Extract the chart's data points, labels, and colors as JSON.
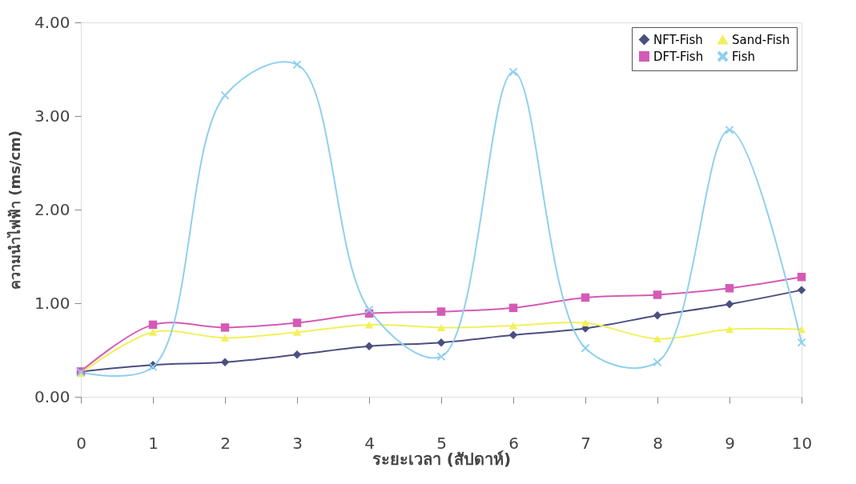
{
  "chart_data": {
    "type": "line",
    "xlabel": "ระยะเวลา (สัปดาห์)",
    "ylabel": "ความนำไฟฟ้า (ms/cm)",
    "x": [
      0,
      1,
      2,
      3,
      4,
      5,
      6,
      7,
      8,
      9,
      10
    ],
    "xlim": [
      0,
      10
    ],
    "xticks": [
      0,
      1,
      2,
      3,
      4,
      5,
      6,
      7,
      8,
      9,
      10
    ],
    "ylim": [
      0,
      4
    ],
    "yticks": [
      {
        "value": 0,
        "label": "0.00"
      },
      {
        "value": 1,
        "label": "1.00"
      },
      {
        "value": 2,
        "label": "2.00"
      },
      {
        "value": 3,
        "label": "3.00"
      },
      {
        "value": 4,
        "label": "4.00"
      }
    ],
    "grid": false,
    "legend": "top right",
    "line_style": "solid",
    "series": [
      {
        "name": "NFT-Fish",
        "color": "#4a4f80",
        "marker": "diamond",
        "values": [
          0.27,
          0.34,
          0.37,
          0.45,
          0.54,
          0.58,
          0.66,
          0.73,
          0.87,
          0.99,
          1.14
        ]
      },
      {
        "name": "DFT-Fish",
        "color": "#d45bb5",
        "marker": "square",
        "values": [
          0.27,
          0.77,
          0.74,
          0.79,
          0.89,
          0.91,
          0.95,
          1.06,
          1.09,
          1.16,
          1.28
        ]
      },
      {
        "name": "Sand-Fish",
        "color": "#f2f05a",
        "marker": "triangle",
        "values": [
          0.25,
          0.69,
          0.63,
          0.69,
          0.77,
          0.74,
          0.76,
          0.79,
          0.62,
          0.72,
          0.72
        ]
      },
      {
        "name": "Fish",
        "color": "#8fd0f0",
        "marker": "cross",
        "values": [
          0.26,
          0.32,
          3.22,
          3.55,
          0.93,
          0.43,
          3.47,
          0.52,
          0.37,
          2.85,
          0.58
        ]
      }
    ]
  }
}
